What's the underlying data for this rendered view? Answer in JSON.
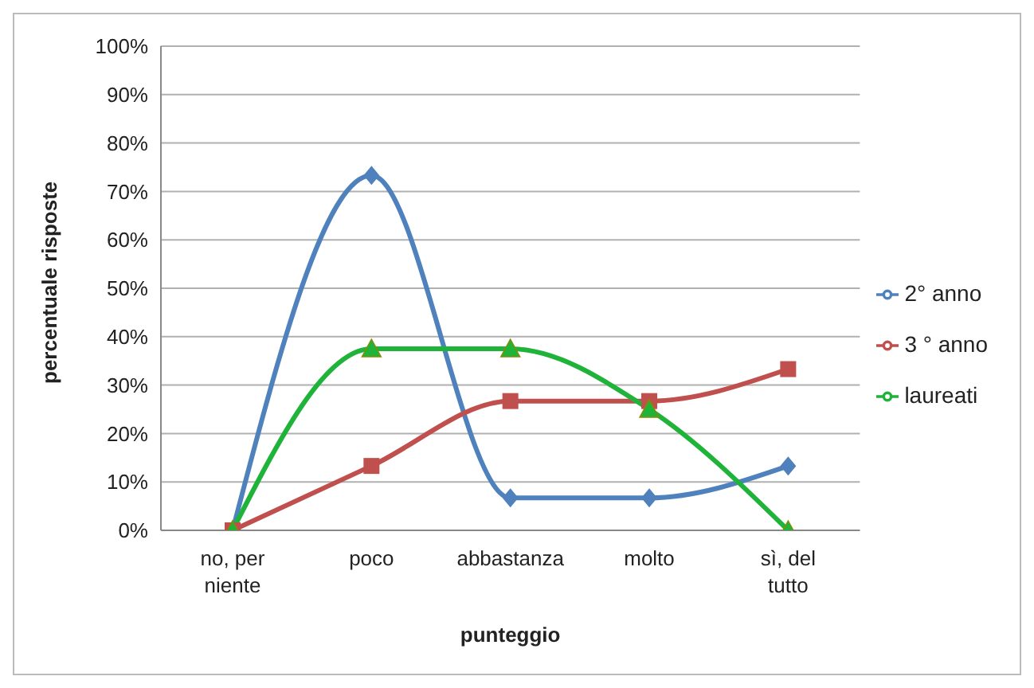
{
  "chart_data": {
    "type": "line",
    "xlabel": "punteggio",
    "ylabel": "percentuale risposte",
    "categories": [
      "no, per niente",
      "poco",
      "abbastanza",
      "molto",
      "sì, del tutto"
    ],
    "series": [
      {
        "name": "2° anno",
        "color": "#4f81bd",
        "marker": "diamond",
        "values": [
          0,
          73.3,
          6.7,
          6.7,
          13.3
        ]
      },
      {
        "name": "3 ° anno",
        "color": "#c0504d",
        "marker": "square",
        "values": [
          0,
          13.3,
          26.7,
          26.7,
          33.3
        ]
      },
      {
        "name": "laureati",
        "color": "#1fb33a",
        "marker": "triangle",
        "values": [
          0,
          37.5,
          37.5,
          25,
          0
        ]
      }
    ],
    "ylim": [
      0,
      100
    ],
    "yticks": [
      {
        "value": 0,
        "label": "0%"
      },
      {
        "value": 10,
        "label": "10%"
      },
      {
        "value": 20,
        "label": "20%"
      },
      {
        "value": 30,
        "label": "30%"
      },
      {
        "value": 40,
        "label": "40%"
      },
      {
        "value": 50,
        "label": "50%"
      },
      {
        "value": 60,
        "label": "60%"
      },
      {
        "value": 70,
        "label": "70%"
      },
      {
        "value": 80,
        "label": "80%"
      },
      {
        "value": 90,
        "label": "90%"
      },
      {
        "value": 100,
        "label": "100%"
      }
    ],
    "grid": "y",
    "legend": "right",
    "line_style": "solid"
  }
}
